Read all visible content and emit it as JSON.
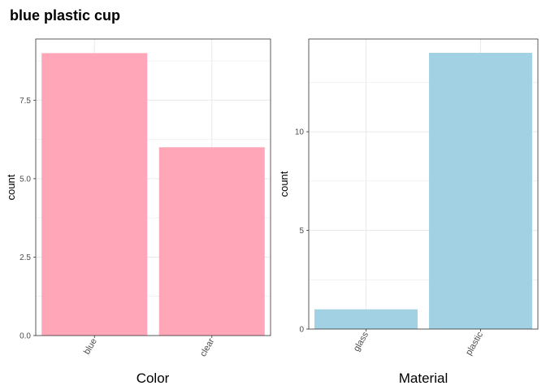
{
  "title": "blue plastic cup",
  "chart_data": [
    {
      "type": "bar",
      "categories": [
        "blue",
        "clear"
      ],
      "values": [
        9,
        6
      ],
      "xlabel": "Color",
      "ylabel": "count",
      "ylim": [
        0,
        9.45
      ],
      "yticks": [
        0.0,
        2.5,
        5.0,
        7.5
      ],
      "ytick_labels": [
        "0.0",
        "2.5",
        "5.0",
        "7.5"
      ],
      "bar_color": "#FFA6B8",
      "grid": true,
      "legend": "none"
    },
    {
      "type": "bar",
      "categories": [
        "glass",
        "plastic"
      ],
      "values": [
        1,
        14
      ],
      "xlabel": "Material",
      "ylabel": "count",
      "ylim": [
        0,
        14.7
      ],
      "yticks": [
        0,
        5,
        10
      ],
      "ytick_labels": [
        "0",
        "5",
        "10"
      ],
      "bar_color": "#A1D1E2",
      "grid": true,
      "legend": "none"
    }
  ]
}
